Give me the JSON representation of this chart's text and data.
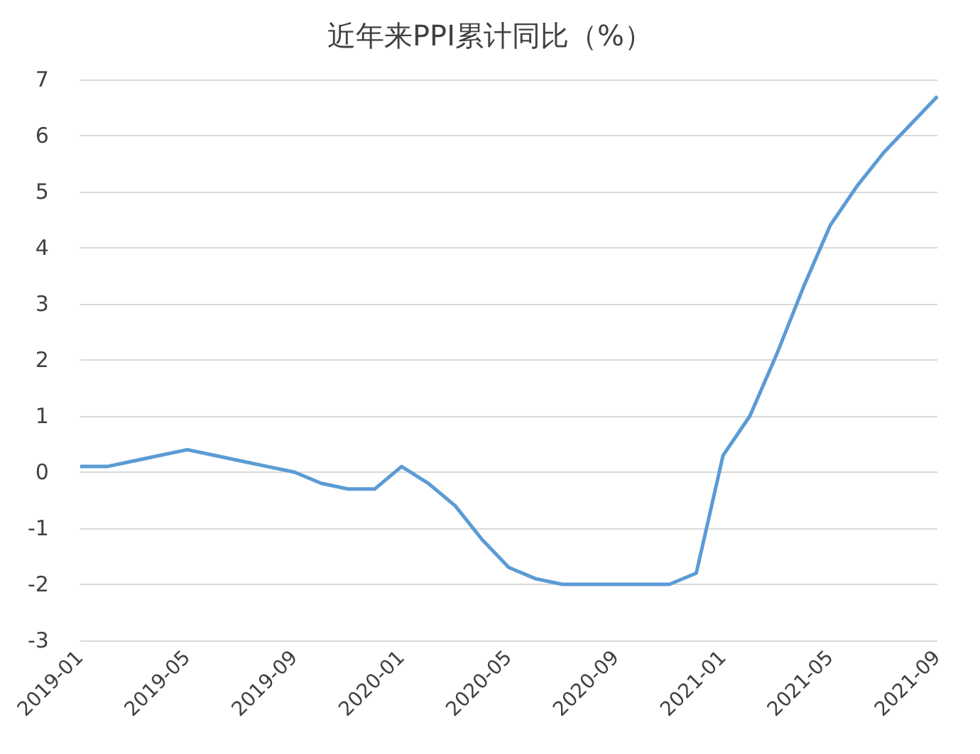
{
  "chart_data": {
    "type": "line",
    "title": "近年来PPI累计同比（%）",
    "categories": [
      "2019-01",
      null,
      null,
      null,
      "2019-05",
      null,
      null,
      null,
      "2019-09",
      null,
      null,
      null,
      "2020-01",
      null,
      null,
      null,
      "2020-05",
      null,
      null,
      null,
      "2020-09",
      null,
      null,
      null,
      "2021-01",
      null,
      null,
      null,
      "2021-05",
      null,
      null,
      null,
      "2021-09"
    ],
    "series": [
      {
        "color": "#5b9bd5",
        "values": [
          0.1,
          0.1,
          0.2,
          0.3,
          0.4,
          0.3,
          0.2,
          0.1,
          0.0,
          -0.2,
          -0.3,
          -0.3,
          0.1,
          -0.2,
          -0.6,
          -1.2,
          -1.7,
          -1.9,
          -2.0,
          -2.0,
          -2.0,
          -2.0,
          -2.0,
          -1.8,
          0.3,
          1.0,
          2.1,
          3.3,
          4.4,
          5.1,
          5.7,
          6.2,
          6.7
        ]
      }
    ],
    "ylim": [
      -3,
      7
    ],
    "yticks": [
      -3,
      -2,
      -1,
      0,
      1,
      2,
      3,
      4,
      5,
      6,
      7
    ],
    "grid": "y",
    "marker": "none",
    "line_style": "solid"
  }
}
